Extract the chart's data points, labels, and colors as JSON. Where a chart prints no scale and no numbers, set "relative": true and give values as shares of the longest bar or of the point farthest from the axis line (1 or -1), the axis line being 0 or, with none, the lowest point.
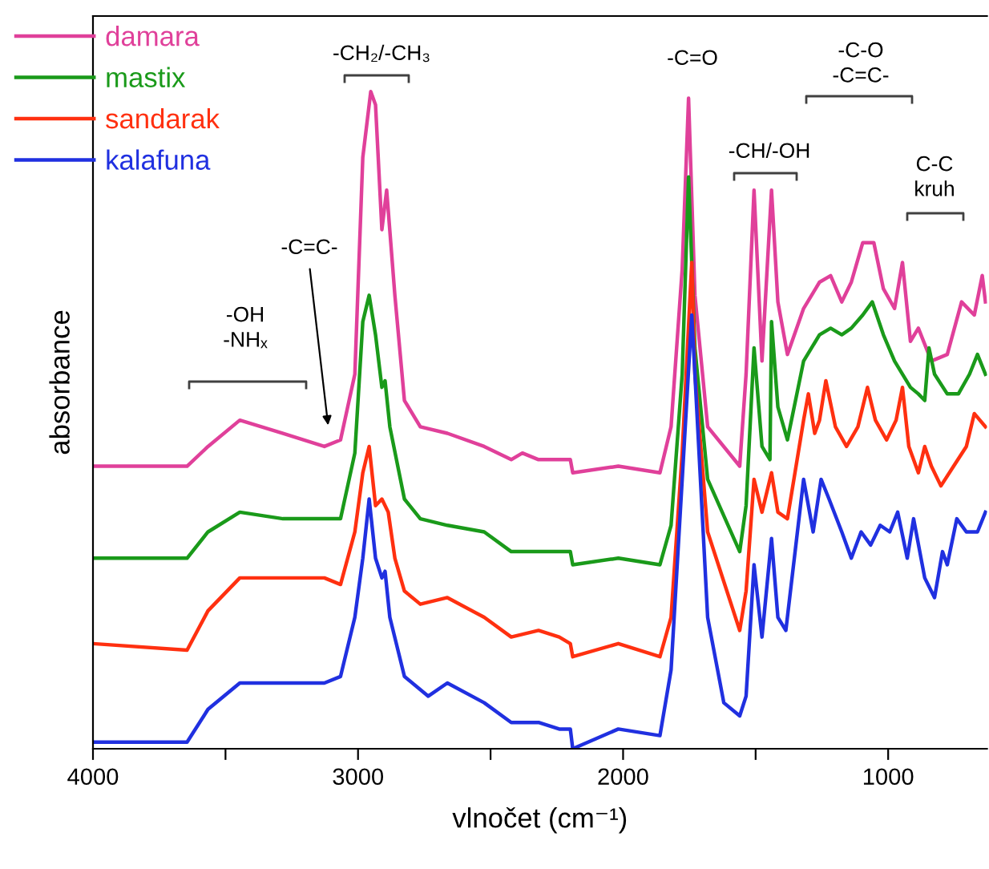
{
  "chart_data": {
    "type": "line",
    "relative": true,
    "xlabel": "vlnočet (cm⁻¹)",
    "ylabel": "absorbance",
    "legend": "top left",
    "grid": false,
    "marker": "none",
    "line_style": "solid",
    "tick_labels": "x",
    "xlim": [
      4000,
      627
    ],
    "xticks": [
      4000,
      {
        "value": 3500,
        "label": null
      },
      3000,
      {
        "value": 2500,
        "label": null
      },
      2000,
      {
        "value": 1500,
        "label": null
      },
      1000
    ],
    "series": [
      {
        "name": "damara",
        "color": "#e0409a",
        "x": [
          4000,
          3645,
          3566,
          3446,
          3283,
          3127,
          3066,
          3012,
          2982,
          2952,
          2934,
          2910,
          2892,
          2861,
          2825,
          2765,
          2663,
          2524,
          2422,
          2380,
          2319,
          2241,
          2199,
          2190,
          2018,
          1861,
          1819,
          1777,
          1753,
          1729,
          1681,
          1560,
          1536,
          1506,
          1476,
          1440,
          1416,
          1380,
          1319,
          1259,
          1217,
          1175,
          1139,
          1096,
          1054,
          1018,
          976,
          946,
          916,
          886,
          837,
          777,
          723,
          675,
          645,
          633
        ],
        "values": [
          0.43,
          0.43,
          0.46,
          0.5,
          0.48,
          0.46,
          0.47,
          0.57,
          0.9,
          1,
          0.98,
          0.79,
          0.85,
          0.69,
          0.53,
          0.49,
          0.48,
          0.46,
          0.44,
          0.45,
          0.44,
          0.44,
          0.44,
          0.42,
          0.43,
          0.42,
          0.49,
          0.73,
          0.99,
          0.69,
          0.49,
          0.43,
          0.57,
          0.85,
          0.59,
          0.85,
          0.68,
          0.6,
          0.67,
          0.71,
          0.72,
          0.68,
          0.71,
          0.77,
          0.77,
          0.7,
          0.67,
          0.74,
          0.62,
          0.64,
          0.59,
          0.6,
          0.68,
          0.66,
          0.72,
          0.68
        ]
      },
      {
        "name": "mastix",
        "color": "#1a9a1a",
        "x": [
          4000,
          3645,
          3566,
          3446,
          3283,
          3127,
          3066,
          3012,
          2982,
          2958,
          2934,
          2910,
          2898,
          2880,
          2825,
          2765,
          2663,
          2524,
          2422,
          2319,
          2241,
          2199,
          2190,
          2018,
          1861,
          1819,
          1777,
          1753,
          1729,
          1681,
          1560,
          1536,
          1506,
          1476,
          1446,
          1440,
          1416,
          1380,
          1319,
          1259,
          1217,
          1175,
          1139,
          1096,
          1060,
          1018,
          976,
          916,
          886,
          862,
          846,
          825,
          777,
          735,
          693,
          663,
          633
        ],
        "values": [
          0.29,
          0.29,
          0.33,
          0.36,
          0.35,
          0.35,
          0.35,
          0.45,
          0.65,
          0.69,
          0.63,
          0.55,
          0.56,
          0.49,
          0.38,
          0.35,
          0.34,
          0.33,
          0.3,
          0.3,
          0.3,
          0.3,
          0.28,
          0.29,
          0.28,
          0.34,
          0.57,
          0.87,
          0.61,
          0.41,
          0.3,
          0.37,
          0.61,
          0.46,
          0.44,
          0.65,
          0.52,
          0.47,
          0.59,
          0.63,
          0.64,
          0.63,
          0.64,
          0.66,
          0.68,
          0.63,
          0.59,
          0.55,
          0.54,
          0.53,
          0.61,
          0.57,
          0.54,
          0.54,
          0.57,
          0.6,
          0.57
        ]
      },
      {
        "name": "sandarak",
        "color": "#ff3010",
        "x": [
          4000,
          3645,
          3566,
          3446,
          3283,
          3127,
          3066,
          3012,
          2982,
          2958,
          2934,
          2910,
          2886,
          2861,
          2825,
          2765,
          2663,
          2524,
          2422,
          2319,
          2241,
          2199,
          2190,
          2018,
          1861,
          1819,
          1777,
          1741,
          1729,
          1681,
          1560,
          1536,
          1506,
          1476,
          1440,
          1416,
          1380,
          1319,
          1301,
          1277,
          1259,
          1235,
          1199,
          1157,
          1114,
          1078,
          1048,
          1006,
          970,
          946,
          922,
          886,
          862,
          837,
          801,
          753,
          705,
          675,
          633
        ],
        "values": [
          0.16,
          0.15,
          0.21,
          0.26,
          0.26,
          0.26,
          0.25,
          0.33,
          0.42,
          0.46,
          0.37,
          0.38,
          0.36,
          0.29,
          0.24,
          0.22,
          0.23,
          0.2,
          0.17,
          0.18,
          0.17,
          0.16,
          0.14,
          0.16,
          0.14,
          0.2,
          0.45,
          0.74,
          0.57,
          0.33,
          0.18,
          0.24,
          0.41,
          0.36,
          0.42,
          0.36,
          0.35,
          0.5,
          0.54,
          0.48,
          0.5,
          0.56,
          0.49,
          0.46,
          0.49,
          0.55,
          0.5,
          0.47,
          0.5,
          0.55,
          0.46,
          0.42,
          0.46,
          0.43,
          0.4,
          0.43,
          0.46,
          0.51,
          0.49
        ]
      },
      {
        "name": "kalafuna",
        "color": "#2030e0",
        "x": [
          4000,
          3645,
          3566,
          3446,
          3283,
          3127,
          3066,
          3012,
          2982,
          2958,
          2934,
          2910,
          2898,
          2880,
          2825,
          2735,
          2663,
          2524,
          2422,
          2319,
          2241,
          2199,
          2190,
          2018,
          1861,
          1819,
          1777,
          1741,
          1729,
          1681,
          1620,
          1560,
          1536,
          1506,
          1476,
          1440,
          1416,
          1386,
          1319,
          1283,
          1253,
          1223,
          1175,
          1139,
          1102,
          1066,
          1030,
          994,
          964,
          928,
          904,
          862,
          825,
          795,
          777,
          741,
          705,
          663,
          633
        ],
        "values": [
          0.01,
          0.01,
          0.06,
          0.1,
          0.1,
          0.1,
          0.11,
          0.2,
          0.29,
          0.38,
          0.29,
          0.26,
          0.27,
          0.2,
          0.11,
          0.08,
          0.1,
          0.07,
          0.04,
          0.04,
          0.03,
          0.03,
          0.0,
          0.03,
          0.02,
          0.12,
          0.41,
          0.66,
          0.57,
          0.2,
          0.07,
          0.05,
          0.08,
          0.28,
          0.17,
          0.32,
          0.2,
          0.18,
          0.41,
          0.33,
          0.41,
          0.38,
          0.33,
          0.29,
          0.33,
          0.31,
          0.34,
          0.33,
          0.36,
          0.29,
          0.35,
          0.26,
          0.23,
          0.3,
          0.28,
          0.35,
          0.33,
          0.33,
          0.36
        ]
      }
    ],
    "annotations": [
      "-OH\n-NHₓ",
      "-C=C-",
      "-CH₂/-CH₃",
      "-C=O",
      "-CH/-OH",
      "-C-O\n-C=C-",
      "C-C\nkruh"
    ]
  }
}
